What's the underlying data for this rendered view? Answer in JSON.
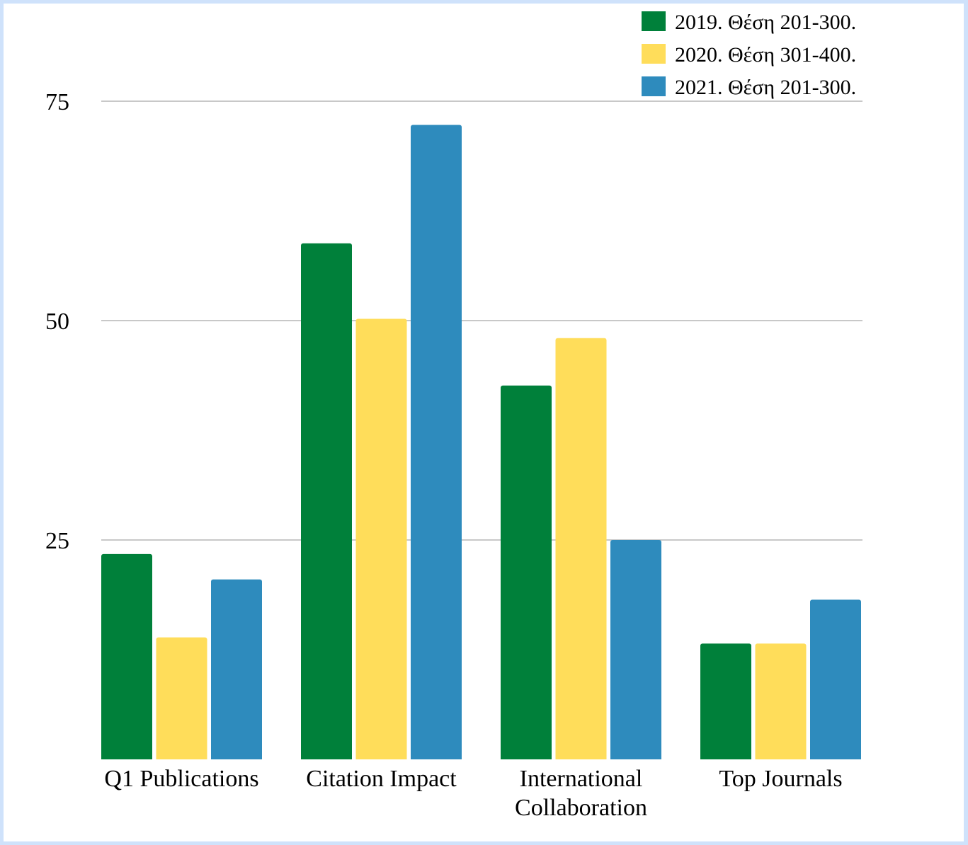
{
  "chart_data": {
    "type": "bar",
    "title": "",
    "xlabel": "",
    "ylabel": "",
    "categories": [
      "Q1 Publications",
      "Citation Impact",
      "International Collaboration",
      "Top Journals"
    ],
    "category_lines": [
      [
        "Q1 Publications"
      ],
      [
        "Citation Impact"
      ],
      [
        "International",
        "Collaboration"
      ],
      [
        "Top Journals"
      ]
    ],
    "series": [
      {
        "name": "2019. Θέση 201-300.",
        "color": "#00803a",
        "values": [
          23.4,
          58.8,
          42.6,
          13.2
        ]
      },
      {
        "name": "2020. Θέση 301-400.",
        "color": "#ffdd5a",
        "values": [
          13.9,
          50.2,
          48.0,
          13.2
        ]
      },
      {
        "name": "2021. Θέση 201-300.",
        "color": "#2e8bbd",
        "values": [
          20.5,
          72.3,
          25.0,
          18.2
        ]
      }
    ],
    "yticks": [
      25,
      50,
      75
    ],
    "ylim": [
      0,
      75
    ],
    "grid": true,
    "legend_position": "top-right"
  }
}
